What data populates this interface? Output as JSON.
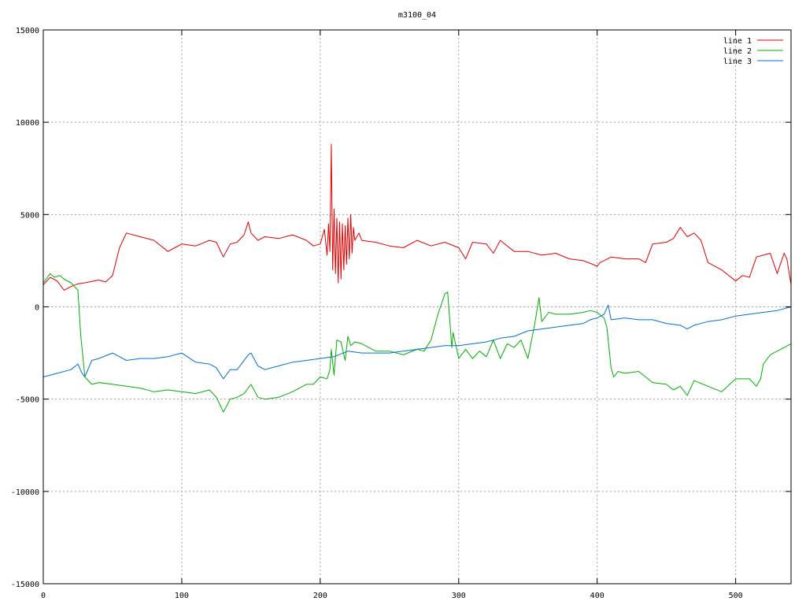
{
  "chart_data": {
    "type": "line",
    "title": "m3100_04",
    "xlabel": "",
    "ylabel": "",
    "xlim": [
      0,
      540
    ],
    "ylim": [
      -15000,
      15000
    ],
    "x_ticks": [
      0,
      100,
      200,
      300,
      400,
      500
    ],
    "y_ticks": [
      -15000,
      -10000,
      -5000,
      0,
      5000,
      10000,
      15000
    ],
    "grid": true,
    "legend_position": "top-right",
    "series": [
      {
        "name": "line 1",
        "color": "#e00000",
        "x": [
          0,
          5,
          10,
          15,
          20,
          25,
          30,
          40,
          45,
          50,
          55,
          60,
          70,
          80,
          90,
          95,
          100,
          110,
          120,
          125,
          130,
          135,
          140,
          145,
          148,
          150,
          155,
          160,
          170,
          180,
          190,
          195,
          200,
          203,
          205,
          206,
          207,
          208,
          209,
          210,
          211,
          212,
          213,
          214,
          215,
          216,
          217,
          218,
          219,
          220,
          221,
          222,
          223,
          224,
          225,
          228,
          230,
          240,
          250,
          260,
          270,
          280,
          290,
          300,
          305,
          310,
          320,
          325,
          330,
          340,
          350,
          360,
          370,
          380,
          390,
          400,
          402,
          405,
          410,
          420,
          430,
          435,
          440,
          450,
          455,
          460,
          465,
          470,
          475,
          480,
          490,
          500,
          505,
          510,
          515,
          520,
          525,
          530,
          535,
          537,
          540
        ],
        "y": [
          1200,
          1600,
          1400,
          900,
          1100,
          1250,
          1300,
          1450,
          1350,
          1700,
          3200,
          4000,
          3800,
          3600,
          3000,
          3200,
          3400,
          3300,
          3600,
          3500,
          2700,
          3400,
          3500,
          3900,
          4600,
          4000,
          3600,
          3800,
          3700,
          3900,
          3600,
          3300,
          3400,
          4200,
          2800,
          4500,
          3000,
          8800,
          2000,
          5300,
          1800,
          4800,
          1300,
          4600,
          1500,
          4500,
          2000,
          4400,
          2300,
          4800,
          2600,
          5000,
          2900,
          4300,
          3600,
          4000,
          3600,
          3500,
          3300,
          3200,
          3600,
          3300,
          3500,
          3200,
          2600,
          3500,
          3400,
          2900,
          3600,
          3000,
          3000,
          2800,
          2900,
          2600,
          2500,
          2200,
          2400,
          2500,
          2700,
          2600,
          2600,
          2400,
          3400,
          3500,
          3700,
          4300,
          3800,
          4000,
          3600,
          2400,
          2000,
          1400,
          1700,
          1600,
          2700,
          2800,
          2900,
          1800,
          2900,
          2600,
          1200
        ]
      },
      {
        "name": "line 2",
        "color": "#00b000",
        "x": [
          0,
          5,
          8,
          12,
          15,
          20,
          25,
          27,
          30,
          35,
          40,
          50,
          60,
          70,
          80,
          90,
          100,
          110,
          120,
          125,
          130,
          135,
          140,
          145,
          150,
          155,
          160,
          170,
          180,
          190,
          195,
          200,
          205,
          207,
          208,
          210,
          212,
          215,
          218,
          220,
          222,
          225,
          230,
          240,
          250,
          260,
          270,
          275,
          280,
          285,
          290,
          292,
          293,
          295,
          296,
          300,
          305,
          310,
          315,
          320,
          325,
          330,
          335,
          340,
          345,
          350,
          355,
          358,
          360,
          365,
          370,
          380,
          390,
          395,
          400,
          405,
          407,
          410,
          412,
          415,
          420,
          430,
          440,
          450,
          455,
          460,
          465,
          470,
          480,
          490,
          500,
          510,
          515,
          518,
          520,
          525,
          530,
          535,
          540
        ],
        "y": [
          1300,
          1800,
          1600,
          1700,
          1500,
          1300,
          900,
          -1500,
          -3800,
          -4200,
          -4100,
          -4200,
          -4300,
          -4400,
          -4600,
          -4500,
          -4600,
          -4700,
          -4500,
          -4900,
          -5700,
          -5000,
          -4900,
          -4700,
          -4200,
          -4900,
          -5000,
          -4900,
          -4600,
          -4200,
          -4200,
          -3800,
          -3900,
          -3400,
          -2300,
          -3700,
          -1800,
          -1900,
          -2900,
          -1600,
          -2100,
          -1900,
          -2000,
          -2400,
          -2400,
          -2600,
          -2300,
          -2400,
          -1800,
          -400,
          700,
          800,
          -200,
          -2200,
          -1400,
          -2800,
          -2300,
          -2800,
          -2400,
          -2700,
          -1800,
          -2800,
          -2000,
          -2200,
          -1800,
          -2800,
          -900,
          500,
          -800,
          -300,
          -400,
          -400,
          -300,
          -200,
          -300,
          -600,
          -1100,
          -3300,
          -3800,
          -3500,
          -3600,
          -3500,
          -4100,
          -4200,
          -4500,
          -4300,
          -4800,
          -4000,
          -4300,
          -4600,
          -3900,
          -3900,
          -4300,
          -3900,
          -3100,
          -2600,
          -2400,
          -2200,
          -2000
        ]
      },
      {
        "name": "line 3",
        "color": "#0070d0",
        "x": [
          0,
          10,
          20,
          25,
          28,
          30,
          35,
          40,
          50,
          60,
          70,
          80,
          90,
          100,
          110,
          120,
          125,
          130,
          135,
          140,
          148,
          150,
          155,
          160,
          170,
          180,
          190,
          200,
          210,
          220,
          230,
          240,
          250,
          260,
          270,
          280,
          290,
          300,
          310,
          320,
          330,
          340,
          350,
          360,
          370,
          380,
          390,
          395,
          400,
          405,
          408,
          410,
          420,
          430,
          440,
          450,
          460,
          465,
          470,
          480,
          490,
          500,
          510,
          520,
          530,
          540
        ],
        "y": [
          -3800,
          -3600,
          -3400,
          -3100,
          -3600,
          -3800,
          -2900,
          -2800,
          -2500,
          -2900,
          -2800,
          -2800,
          -2700,
          -2500,
          -3000,
          -3100,
          -3300,
          -3900,
          -3400,
          -3400,
          -2600,
          -2500,
          -3200,
          -3400,
          -3200,
          -3000,
          -2900,
          -2800,
          -2700,
          -2400,
          -2500,
          -2500,
          -2500,
          -2400,
          -2300,
          -2200,
          -2100,
          -2100,
          -2000,
          -1900,
          -1700,
          -1600,
          -1300,
          -1200,
          -1100,
          -1000,
          -900,
          -700,
          -600,
          -400,
          100,
          -700,
          -600,
          -700,
          -700,
          -900,
          -1000,
          -1200,
          -1000,
          -800,
          -700,
          -500,
          -400,
          -300,
          -200,
          0
        ]
      }
    ]
  }
}
